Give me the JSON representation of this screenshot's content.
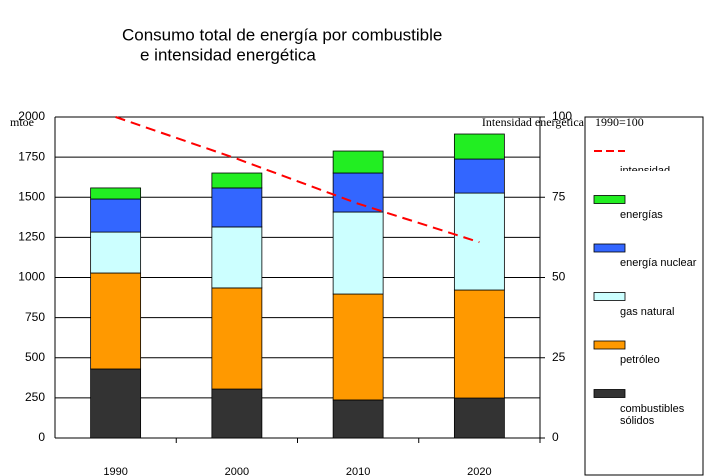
{
  "chart_data": {
    "type": "bar",
    "stacked": true,
    "title_lines": [
      "Consumo total de energía por combustible",
      "e intensidad energética"
    ],
    "y_label": "mtoe",
    "y2_label": "Intensidad energética",
    "y2_note": "1990=100",
    "categories": [
      "1990",
      "2000",
      "2010",
      "2020"
    ],
    "series": [
      {
        "name": "combustibles sólidos",
        "color": "#333333",
        "values": [
          430,
          305,
          237,
          249
        ]
      },
      {
        "name": "petróleo",
        "color": "#ff9900",
        "values": [
          598,
          630,
          660,
          673
        ]
      },
      {
        "name": "gas natural",
        "color": "#ccffff",
        "values": [
          255,
          380,
          511,
          604
        ]
      },
      {
        "name": "energía nuclear",
        "color": "#3366ff",
        "values": [
          206,
          243,
          243,
          212
        ]
      },
      {
        "name": "energías",
        "color": "#22ee22",
        "values": [
          69,
          93,
          137,
          156
        ]
      },
      {
        "name": "intensidad energética",
        "color": "#ff0000",
        "type": "line",
        "axis": "y2",
        "dashed": true,
        "values": [
          100,
          87,
          73,
          61
        ]
      }
    ],
    "ylim": [
      0,
      2000
    ],
    "yticks": [
      0,
      250,
      500,
      750,
      1000,
      1250,
      1500,
      1750,
      2000
    ],
    "y2lim": [
      0,
      100
    ],
    "y2ticks": [
      0,
      25,
      50,
      75,
      100
    ],
    "grid": true,
    "legend": "right"
  }
}
